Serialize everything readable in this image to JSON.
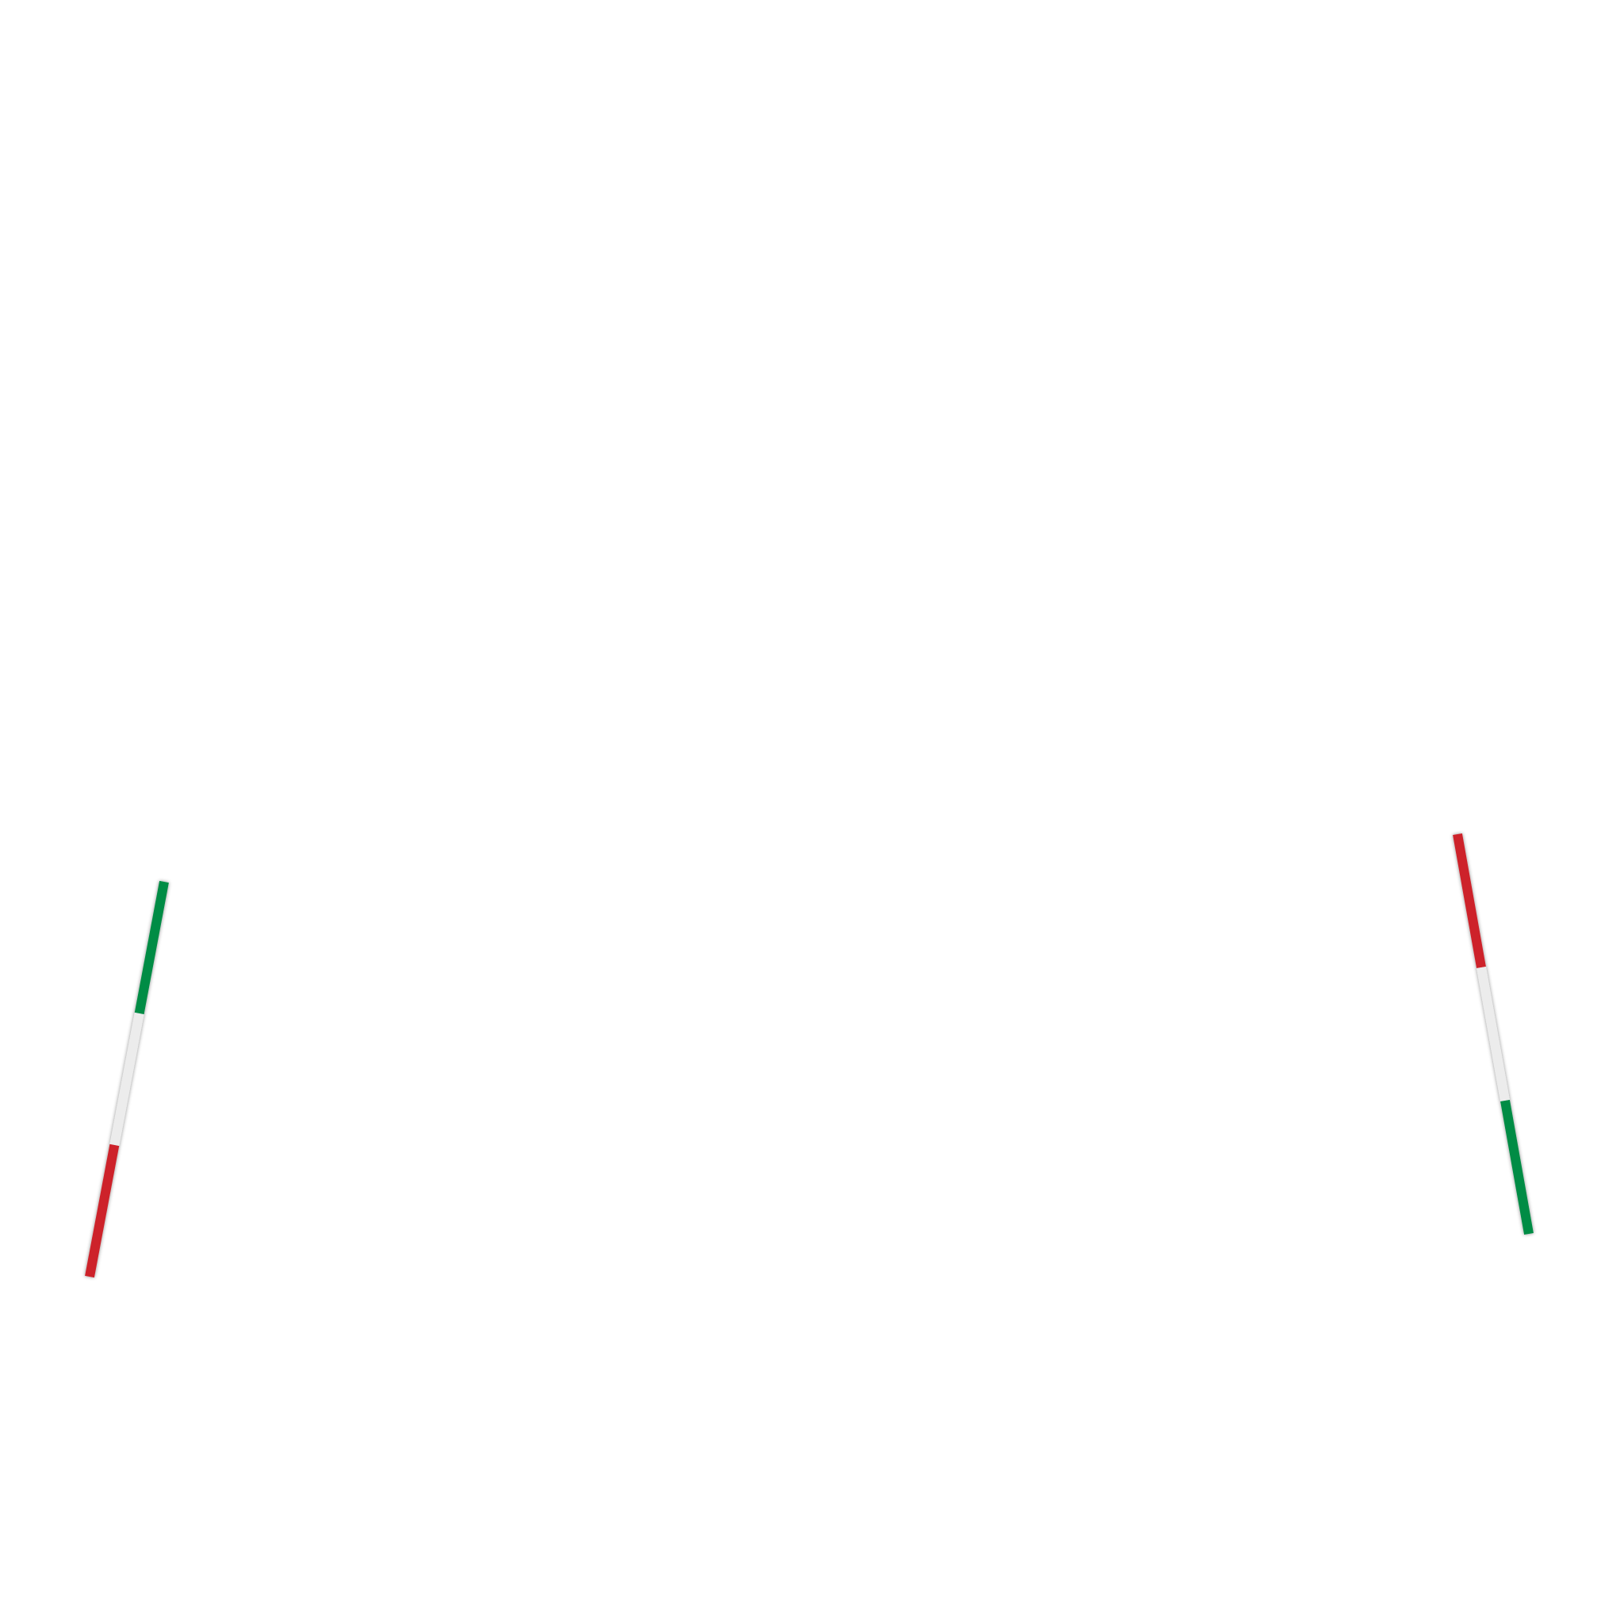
{
  "colors": {
    "green": "#008c45",
    "white": "#ececec",
    "red": "#cd212a",
    "background": "#ffffff"
  },
  "stripes": [
    {
      "name": "left-tricolor-stripe",
      "segments_top_to_bottom": [
        "green",
        "white",
        "red"
      ]
    },
    {
      "name": "right-tricolor-stripe",
      "segments_top_to_bottom": [
        "red",
        "white",
        "green"
      ]
    }
  ]
}
